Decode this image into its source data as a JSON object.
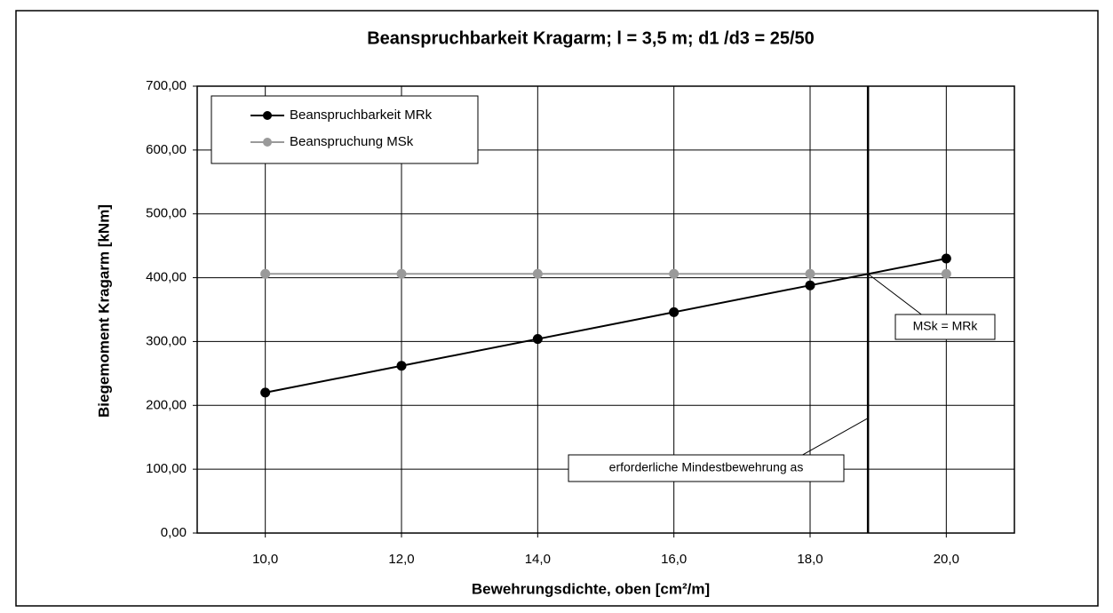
{
  "chart_data": {
    "type": "line",
    "title": "Beanspruchbarkeit Kragarm; l = 3,5 m; d1 /d3 = 25/50",
    "x_label": "Bewehrungsdichte, oben [cm²/m]",
    "y_label": "Biegemoment Kragarm [kNm]",
    "x": [
      10,
      12,
      14,
      16,
      18,
      20
    ],
    "series": [
      {
        "name": "Beanspruchbarkeit MRk",
        "color": "#000000",
        "values": [
          220,
          262,
          304,
          346,
          388,
          430
        ]
      },
      {
        "name": "Beanspruchung MSk",
        "color": "#9a9a9a",
        "values": [
          406,
          406,
          406,
          406,
          406,
          406
        ]
      }
    ],
    "xlim": [
      9,
      21
    ],
    "xticks": [
      {
        "value": 10,
        "label": "10,0"
      },
      {
        "value": 12,
        "label": "12,0"
      },
      {
        "value": 14,
        "label": "14,0"
      },
      {
        "value": 16,
        "label": "16,0"
      },
      {
        "value": 18,
        "label": "18,0"
      },
      {
        "value": 20,
        "label": "20,0"
      }
    ],
    "ylim": [
      0,
      700
    ],
    "yticks": [
      {
        "value": 0,
        "label": "0,00"
      },
      {
        "value": 100,
        "label": "100,00"
      },
      {
        "value": 200,
        "label": "200,00"
      },
      {
        "value": 300,
        "label": "300,00"
      },
      {
        "value": 400,
        "label": "400,00"
      },
      {
        "value": 500,
        "label": "500,00"
      },
      {
        "value": 600,
        "label": "600,00"
      },
      {
        "value": 700,
        "label": "700,00"
      }
    ],
    "grid": true,
    "legend": "upper left",
    "vline": 18.85,
    "annotations": [
      {
        "text": "MSk = MRk"
      },
      {
        "text": "erforderliche Mindestbewehrung as"
      }
    ]
  }
}
